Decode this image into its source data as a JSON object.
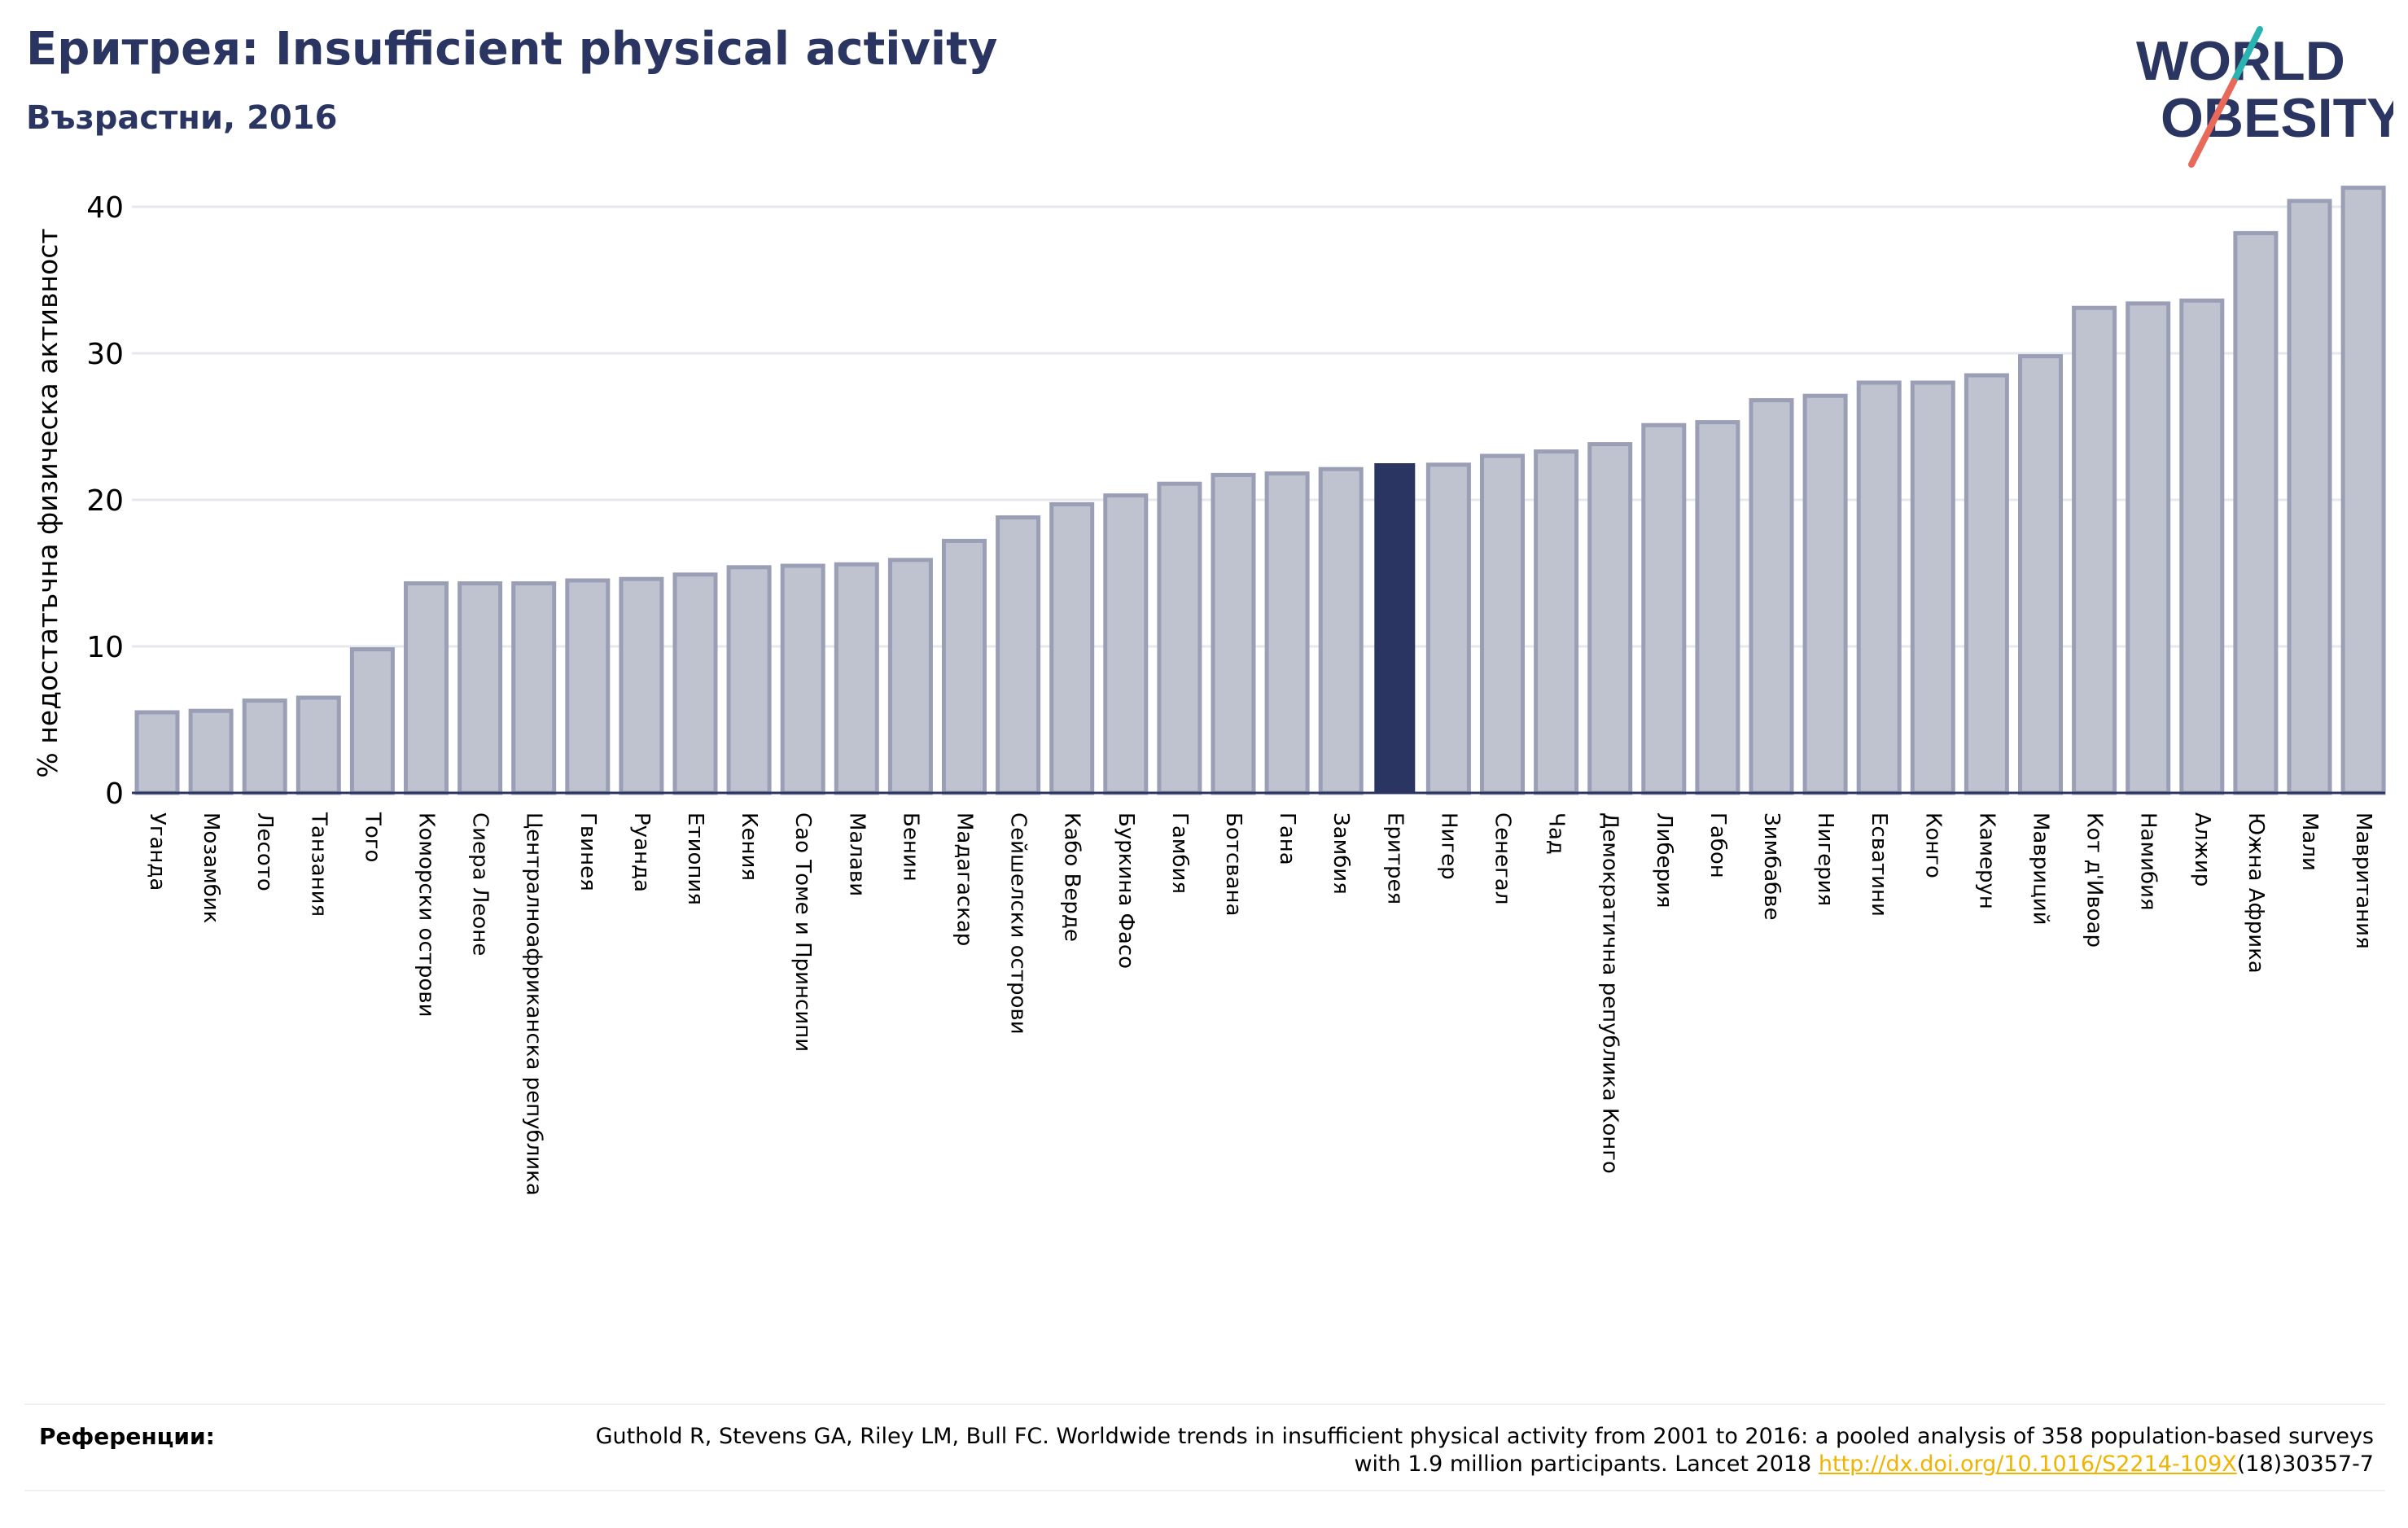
{
  "header": {
    "title": "Еритрея: Insufficient physical activity",
    "subtitle": "Възрастни, 2016"
  },
  "logo": {
    "line1": "WORLD",
    "line2": "OBESITY",
    "colors": {
      "text": "#2b3562",
      "slash_teal": "#2ab3b0",
      "slash_coral": "#e8685a"
    }
  },
  "colors": {
    "bar_fill": "#bfc2cf",
    "bar_stroke": "#9a9fb6",
    "highlight": "#2b3562",
    "grid": "#e6e8ee",
    "axis": "#2b3562"
  },
  "chart_data": {
    "type": "bar",
    "ylabel": "% недостатъчна физическа активност",
    "ylim": [
      0,
      42
    ],
    "yticks": [
      0,
      10,
      20,
      30,
      40
    ],
    "grid": true,
    "highlight": "Еритрея",
    "categories": [
      "Уганда",
      "Мозамбик",
      "Лесото",
      "Танзания",
      "Того",
      "Коморски острови",
      "Сиера Леоне",
      "Централноафриканска република",
      "Гвинея",
      "Руанда",
      "Етиопия",
      "Кения",
      "Сао Томе и Принсипи",
      "Малави",
      "Бенин",
      "Мадагаскар",
      "Сейшелски острови",
      "Кабо Верде",
      "Буркина Фасо",
      "Гамбия",
      "Ботсвана",
      "Гана",
      "Замбия",
      "Еритрея",
      "Нигер",
      "Сенегал",
      "Чад",
      "Демократична република Конго",
      "Либерия",
      "Габон",
      "Зимбабве",
      "Нигерия",
      "Есватини",
      "Конго",
      "Камерун",
      "Мавриций",
      "Кот д'Ивоар",
      "Намибия",
      "Алжир",
      "Южна Африка",
      "Мали",
      "Мавритания"
    ],
    "values": [
      5.5,
      5.6,
      6.3,
      6.5,
      9.8,
      14.3,
      14.3,
      14.3,
      14.5,
      14.6,
      14.9,
      15.4,
      15.5,
      15.6,
      15.9,
      17.2,
      18.8,
      19.7,
      20.3,
      21.1,
      21.7,
      21.8,
      22.1,
      22.5,
      22.4,
      23.0,
      23.3,
      23.8,
      25.1,
      25.3,
      26.8,
      27.1,
      28.0,
      28.0,
      28.5,
      29.8,
      33.1,
      33.4,
      33.6,
      38.2,
      40.4,
      41.3
    ]
  },
  "footer": {
    "label": "Референции:",
    "text": "Guthold R, Stevens GA, Riley LM, Bull FC. Worldwide trends in insufficient physical activity from 2001 to 2016: a pooled analysis of 358 population-based surveys with 1.9 million participants. Lancet 2018 ",
    "link_text": "http://dx.doi.org/10.1016/S2214-109X",
    "link_tail": "(18)30357-7"
  }
}
